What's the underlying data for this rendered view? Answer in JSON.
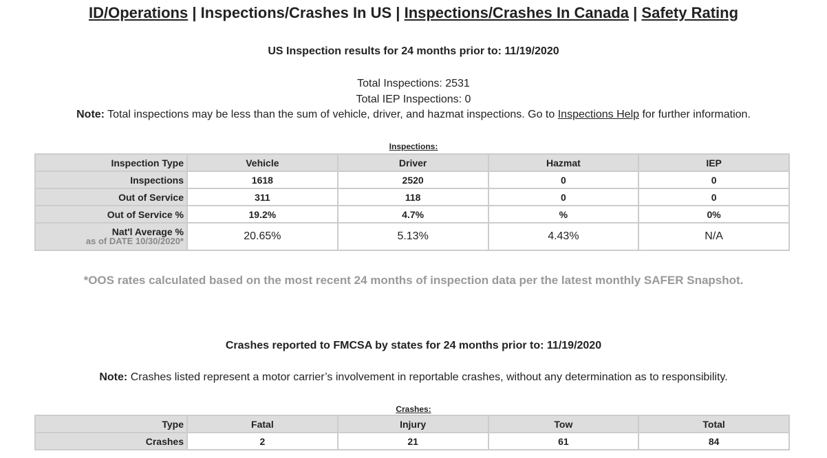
{
  "nav": {
    "links": [
      "ID/Operations",
      "Inspections/Crashes In US",
      "Inspections/Crashes In Canada",
      "Safety Rating"
    ],
    "separator": "|"
  },
  "inspections": {
    "heading": "US Inspection results for 24 months prior to: 11/19/2020",
    "total": "Total Inspections: 2531",
    "total_iep": "Total IEP Inspections: 0",
    "note_label": "Note:",
    "note_before": "Total inspections may be less than the sum of vehicle, driver, and hazmat inspections. Go to",
    "note_link": "Inspections Help",
    "note_after": "for further information.",
    "table": {
      "caption": "Inspections:",
      "header": [
        "Inspection Type",
        "Vehicle",
        "Driver",
        "Hazmat",
        "IEP"
      ],
      "rows": [
        [
          "Inspections",
          "1618",
          "2520",
          "0",
          "0"
        ],
        [
          "Out of Service",
          "311",
          "118",
          "0",
          "0"
        ],
        [
          "Out of Service %",
          "19.2%",
          "4.7%",
          "%",
          "0%"
        ]
      ],
      "average_row": {
        "label": "Nat'l Average %",
        "sublabel": "as of DATE 10/30/2020*",
        "values": [
          "20.65%",
          "5.13%",
          "4.43%",
          "N/A"
        ]
      }
    },
    "footnote": "*OOS rates calculated based on the most recent 24 months of inspection data per the latest monthly SAFER Snapshot."
  },
  "crashes": {
    "heading": "Crashes reported to FMCSA by states for 24 months prior to: 11/19/2020",
    "note_label": "Note:",
    "note_text": "Crashes listed represent a motor carrier’s involvement in reportable crashes, without any determination as to responsibility.",
    "table": {
      "caption": "Crashes:",
      "header": [
        "Type",
        "Fatal",
        "Injury",
        "Tow",
        "Total"
      ],
      "rows": [
        [
          "Crashes",
          "2",
          "21",
          "61",
          "84"
        ]
      ]
    }
  }
}
